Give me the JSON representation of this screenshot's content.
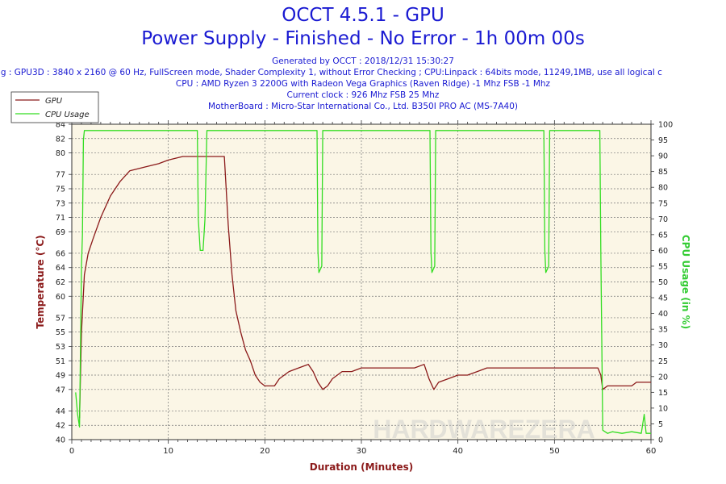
{
  "header": {
    "title": "OCCT 4.5.1 - GPU",
    "subtitle": "Power Supply - Finished - No Error - 1h 00m 00s",
    "info_lines": [
      "Generated by OCCT : 2018/12/31 15:30:27",
      "ig : GPU3D : 3840 x 2160 @ 60 Hz, FullScreen mode, Shader Complexity 1, without Error Checking ; CPU:Linpack : 64bits mode, 11249,1MB, use all logical c",
      "CPU : AMD Ryzen 3 2200G with Radeon Vega Graphics (Raven Ridge) -1 Mhz FSB -1 Mhz",
      "Current clock : 926 Mhz FSB 25 Mhz",
      "MotherBoard : Micro-Star International Co., Ltd. B350I PRO AC (MS-7A40)"
    ]
  },
  "watermark": "HARDWAREZERA",
  "colors": {
    "gpu": "#8b1a1a",
    "cpu": "#33dd22",
    "plot_bg": "#fbf6e6",
    "grid": "#777777",
    "text_blue": "#1a1ad2",
    "left_axis_label": "#8b1a1a",
    "right_axis_label": "#33cc33"
  },
  "chart_data": {
    "type": "line",
    "xlabel": "Duration (Minutes)",
    "ylabel_left": "Temperature (°C)",
    "ylabel_right": "CPU Usage (in %)",
    "xlim": [
      0,
      60
    ],
    "ylim_left": [
      40,
      84
    ],
    "ylim_right": [
      0,
      100
    ],
    "x_ticks": [
      0,
      10,
      20,
      30,
      40,
      50,
      60
    ],
    "y_left_ticks": [
      40,
      42,
      44,
      47,
      49,
      51,
      53,
      55,
      57,
      60,
      62,
      64,
      66,
      69,
      71,
      73,
      75,
      77,
      80,
      82,
      84
    ],
    "y_right_ticks": [
      0,
      5,
      10,
      15,
      20,
      25,
      30,
      35,
      40,
      45,
      50,
      55,
      60,
      65,
      70,
      75,
      80,
      85,
      90,
      95,
      100
    ],
    "legend_position": "top-left",
    "grid": true,
    "series": [
      {
        "name": "GPU",
        "axis": "left",
        "x": [
          0.8,
          1.0,
          1.3,
          1.7,
          2.2,
          3.0,
          4.0,
          5.0,
          6.0,
          7.5,
          9.0,
          10.0,
          11.5,
          13.0,
          14.0,
          15.0,
          15.8,
          16.2,
          16.6,
          17.0,
          17.5,
          18.0,
          18.5,
          19.0,
          19.5,
          20.0,
          21.0,
          21.5,
          22.5,
          23.5,
          24.5,
          25.0,
          25.5,
          26.0,
          26.5,
          27.0,
          28.0,
          29.0,
          30.0,
          31.0,
          32.0,
          33.0,
          34.0,
          35.5,
          36.5,
          37.0,
          37.5,
          38.0,
          39.0,
          40.0,
          41.0,
          42.0,
          43.0,
          44.0,
          45.0,
          46.0,
          47.0,
          48.0,
          49.0,
          50.0,
          51.0,
          52.0,
          53.0,
          54.0,
          54.5,
          54.8,
          55.0,
          55.5,
          56.0,
          57.0,
          58.0,
          58.5,
          59.0,
          60.0
        ],
        "values": [
          43.0,
          55.0,
          63.0,
          66.0,
          68.0,
          71.0,
          74.0,
          76.0,
          77.5,
          78.0,
          78.5,
          79.0,
          79.5,
          79.5,
          79.5,
          79.5,
          79.5,
          70.0,
          63.0,
          58.0,
          55.0,
          52.5,
          51.0,
          49.0,
          48.0,
          47.5,
          47.5,
          48.5,
          49.5,
          50.0,
          50.5,
          49.5,
          48.0,
          47.0,
          47.5,
          48.5,
          49.5,
          49.5,
          50.0,
          50.0,
          50.0,
          50.0,
          50.0,
          50.0,
          50.5,
          48.5,
          47.0,
          48.0,
          48.5,
          49.0,
          49.0,
          49.5,
          50.0,
          50.0,
          50.0,
          50.0,
          50.0,
          50.0,
          50.0,
          50.0,
          50.0,
          50.0,
          50.0,
          50.0,
          50.0,
          49.0,
          47.0,
          47.5,
          47.5,
          47.5,
          47.5,
          48.0,
          48.0,
          48.0
        ]
      },
      {
        "name": "CPU Usage",
        "axis": "right",
        "x": [
          0.0,
          0.4,
          0.6,
          0.8,
          1.0,
          1.1,
          1.2,
          1.3,
          1.4,
          1.5,
          13.0,
          13.1,
          13.3,
          13.6,
          13.8,
          14.0,
          14.1,
          25.4,
          25.5,
          25.6,
          25.9,
          26.0,
          26.1,
          37.1,
          37.2,
          37.3,
          37.6,
          37.7,
          37.8,
          48.9,
          49.0,
          49.1,
          49.4,
          49.5,
          49.6,
          54.7,
          54.8,
          55.0,
          55.5,
          56.0,
          57.0,
          58.0,
          59.0,
          59.3,
          59.5,
          60.0
        ],
        "values": [
          null,
          15.0,
          8.0,
          4.0,
          55.0,
          65.0,
          95.0,
          98.0,
          98.0,
          98.0,
          98.0,
          70.0,
          60.0,
          60.0,
          70.0,
          98.0,
          98.0,
          98.0,
          60.0,
          53.0,
          55.0,
          98.0,
          98.0,
          98.0,
          60.0,
          53.0,
          55.0,
          98.0,
          98.0,
          98.0,
          60.0,
          53.0,
          55.0,
          98.0,
          98.0,
          98.0,
          60.0,
          3.0,
          2.0,
          2.5,
          2.0,
          2.5,
          2.0,
          8.0,
          2.0,
          2.0
        ]
      }
    ]
  }
}
